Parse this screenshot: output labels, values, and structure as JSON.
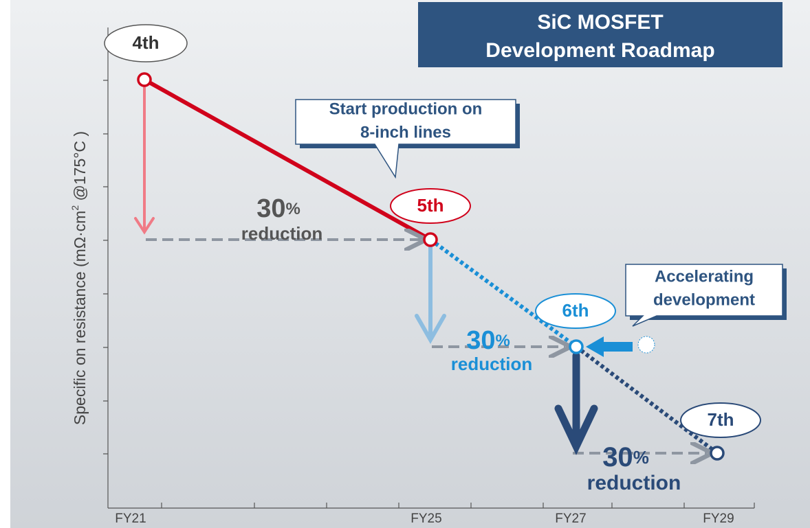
{
  "title": {
    "line1": "SiC MOSFET",
    "line2": "Development Roadmap"
  },
  "y_axis": {
    "label": "Specific on resistance (mΩ·cm",
    "sup": "2",
    "label_end": " @175°C )"
  },
  "x_axis": {
    "labels": [
      "FY21",
      "FY25",
      "FY27",
      "FY29"
    ]
  },
  "generations": [
    "4th",
    "5th",
    "6th",
    "7th"
  ],
  "callouts": [
    {
      "lines": [
        "Start production on",
        "8-inch lines"
      ]
    },
    {
      "lines": [
        "Accelerating",
        "development"
      ]
    }
  ],
  "reductions": [
    {
      "number": "30",
      "unit": "%",
      "text": "reduction"
    },
    {
      "number": "30",
      "unit": "%",
      "text": "reduction"
    },
    {
      "number": "30",
      "unit": "%",
      "text": "reduction"
    }
  ]
}
